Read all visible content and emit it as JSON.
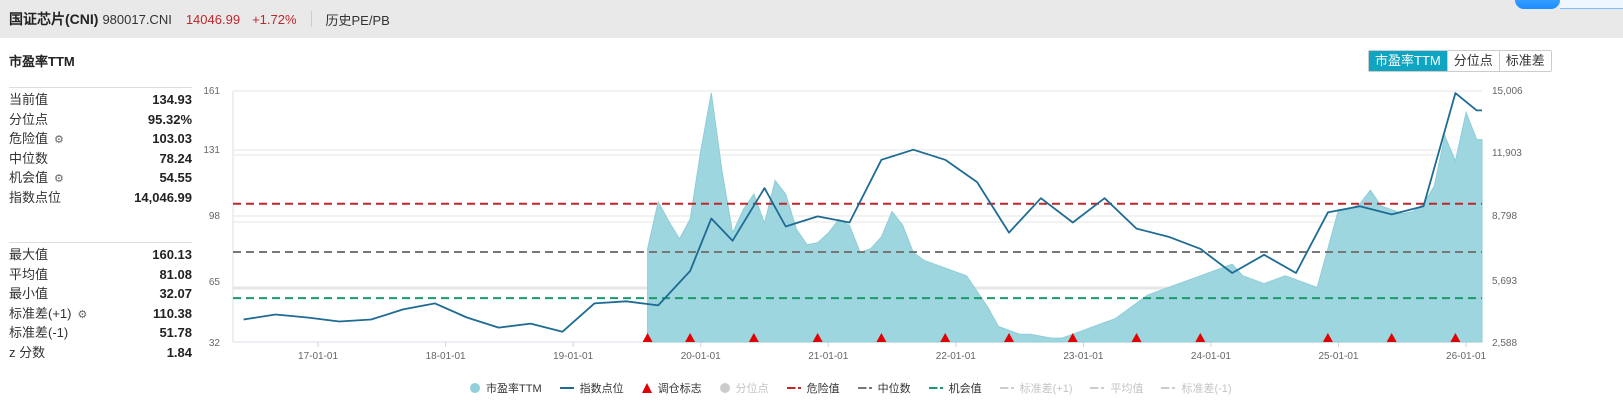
{
  "header": {
    "name": "国证芯片(CNI)",
    "code": "980017.CNI",
    "price": "14046.99",
    "change": "+1.72%",
    "link": "历史PE/PB"
  },
  "section_title": "市盈率TTM",
  "tabs": [
    {
      "label": "市盈率TTM",
      "active": true
    },
    {
      "label": "分位点",
      "active": false
    },
    {
      "label": "标准差",
      "active": false
    }
  ],
  "stats_top": [
    {
      "label": "当前值",
      "value": "134.93",
      "gear": false
    },
    {
      "label": "分位点",
      "value": "95.32%",
      "gear": false
    },
    {
      "label": "危险值",
      "value": "103.03",
      "gear": true
    },
    {
      "label": "中位数",
      "value": "78.24",
      "gear": false
    },
    {
      "label": "机会值",
      "value": "54.55",
      "gear": true
    },
    {
      "label": "指数点位",
      "value": "14,046.99",
      "gear": false
    }
  ],
  "stats_bottom": [
    {
      "label": "最大值",
      "value": "160.13",
      "gear": false
    },
    {
      "label": "平均值",
      "value": "81.08",
      "gear": false
    },
    {
      "label": "最小值",
      "value": "32.07",
      "gear": false
    },
    {
      "label": "标准差(+1)",
      "value": "110.38",
      "gear": true
    },
    {
      "label": "标准差(-1)",
      "value": "51.78",
      "gear": false
    },
    {
      "label": "z 分数",
      "value": "1.84",
      "gear": false
    }
  ],
  "legend": [
    {
      "label": "市盈率TTM",
      "symbol": "circle",
      "color": "#8fd0da",
      "enabled": true
    },
    {
      "label": "指数点位",
      "symbol": "line",
      "color": "#1e6b94",
      "enabled": true
    },
    {
      "label": "调仓标志",
      "symbol": "triangle",
      "color": "#e00000",
      "enabled": true
    },
    {
      "label": "分位点",
      "symbol": "circle",
      "color": "#cccccc",
      "enabled": false
    },
    {
      "label": "危险值",
      "symbol": "dash",
      "color": "#c0272d",
      "enabled": true
    },
    {
      "label": "中位数",
      "symbol": "dash",
      "color": "#777777",
      "enabled": true
    },
    {
      "label": "机会值",
      "symbol": "dash",
      "color": "#1a9a6a",
      "enabled": true
    },
    {
      "label": "标准差(+1)",
      "symbol": "dash",
      "color": "#cccccc",
      "enabled": false
    },
    {
      "label": "平均值",
      "symbol": "dash",
      "color": "#cccccc",
      "enabled": false
    },
    {
      "label": "标准差(-1)",
      "symbol": "dash",
      "color": "#cccccc",
      "enabled": false
    }
  ],
  "colors": {
    "accent": "#0fa4c0",
    "pe_fill": "#9dd6df",
    "index_line": "#1e6b94",
    "danger": "#c0272d",
    "median": "#777777",
    "opportunity": "#1a9a6a",
    "marker": "#e00000",
    "price_red": "#c0272d"
  },
  "chart_data": {
    "type": "area",
    "title": "市盈率TTM",
    "left_axis": {
      "ticks": [
        "161",
        "131",
        "98",
        "65",
        "32"
      ],
      "range": [
        32,
        161
      ]
    },
    "right_axis": {
      "ticks": [
        "15,006",
        "11,903",
        "8,798",
        "5,693",
        "2,588"
      ],
      "range": [
        2588,
        15006
      ]
    },
    "x_ticks": [
      "17-01-01",
      "18-01-01",
      "19-01-01",
      "20-01-01",
      "21-01-01",
      "22-01-01",
      "23-01-01",
      "24-01-01",
      "25-01-01",
      "26-01-01"
    ],
    "reference_lines": {
      "danger": 103.03,
      "median": 78.24,
      "opportunity": 54.55
    },
    "series": [
      {
        "name": "市盈率TTM",
        "axis": "left",
        "x": [
          "19-08",
          "19-09",
          "19-10",
          "19-11",
          "19-12",
          "20-01",
          "20-02",
          "20-03",
          "20-04",
          "20-05",
          "20-06",
          "20-07",
          "20-08",
          "20-09",
          "20-10",
          "20-11",
          "20-12",
          "21-01",
          "21-02",
          "21-03",
          "21-04",
          "21-05",
          "21-06",
          "21-07",
          "21-08",
          "21-09",
          "21-10",
          "21-11",
          "21-12",
          "22-01",
          "22-02",
          "22-03",
          "22-04",
          "22-05",
          "22-06",
          "22-07",
          "22-08",
          "22-09",
          "22-10",
          "22-11",
          "22-12",
          "23-01",
          "23-02",
          "23-03",
          "23-04",
          "23-05",
          "23-06",
          "23-07",
          "23-08",
          "23-09",
          "23-10",
          "23-11",
          "23-12",
          "24-01",
          "24-02",
          "24-03",
          "24-04",
          "24-05",
          "24-06",
          "24-07",
          "24-08",
          "24-09",
          "24-10",
          "24-11",
          "24-12",
          "25-01",
          "25-02",
          "25-03",
          "25-04",
          "25-05",
          "25-06",
          "25-07",
          "25-08",
          "25-09",
          "25-10",
          "25-11",
          "25-12",
          "26-01",
          "26-02"
        ],
        "values": [
          80,
          104,
          94,
          85,
          95,
          130,
          160,
          120,
          88,
          100,
          108,
          93,
          115,
          108,
          90,
          82,
          83,
          88,
          95,
          92,
          78,
          80,
          86,
          99,
          92,
          78,
          74,
          72,
          70,
          68,
          66,
          58,
          50,
          40,
          38,
          36,
          36,
          35,
          34,
          34,
          36,
          38,
          40,
          42,
          44,
          48,
          52,
          56,
          58,
          60,
          62,
          64,
          66,
          68,
          70,
          72,
          66,
          64,
          62,
          64,
          66,
          64,
          62,
          60,
          80,
          100,
          100,
          103,
          110,
          102,
          100,
          98,
          99,
          103,
          112,
          138,
          125,
          150,
          136
        ]
      },
      {
        "name": "指数点位",
        "axis": "right",
        "x": [
          "16-06",
          "16-09",
          "16-12",
          "17-03",
          "17-06",
          "17-09",
          "17-12",
          "18-03",
          "18-06",
          "18-09",
          "18-12",
          "19-03",
          "19-06",
          "19-09",
          "19-12",
          "20-02",
          "20-04",
          "20-07",
          "20-09",
          "20-12",
          "21-03",
          "21-06",
          "21-09",
          "21-12",
          "22-03",
          "22-06",
          "22-09",
          "22-12",
          "23-03",
          "23-06",
          "23-09",
          "23-12",
          "24-03",
          "24-06",
          "24-09",
          "24-12",
          "25-03",
          "25-06",
          "25-09",
          "25-12",
          "26-02"
        ],
        "values": [
          3700,
          3950,
          3800,
          3600,
          3700,
          4200,
          4500,
          3800,
          3300,
          3500,
          3100,
          4500,
          4600,
          4400,
          6100,
          8700,
          7600,
          10200,
          8300,
          8800,
          8500,
          11600,
          12100,
          11600,
          10500,
          8000,
          9700,
          8500,
          9700,
          8200,
          7800,
          7200,
          6000,
          6900,
          6000,
          9000,
          9300,
          8900,
          9300,
          14900,
          14047
        ]
      }
    ],
    "rebalance_markers": [
      "19-08",
      "19-12",
      "20-06",
      "20-12",
      "21-06",
      "21-12",
      "22-06",
      "22-12",
      "23-06",
      "23-12",
      "24-12",
      "25-06",
      "25-12"
    ]
  }
}
